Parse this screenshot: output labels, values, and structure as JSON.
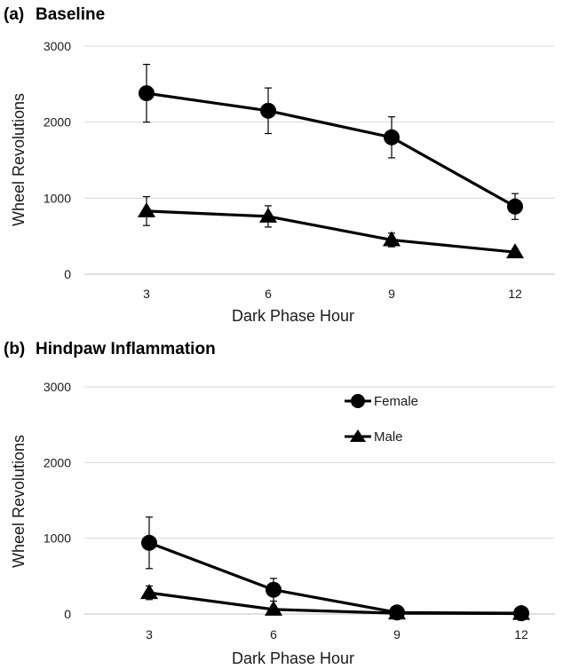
{
  "chart_data": [
    {
      "type": "line",
      "panel_label": "(a)",
      "title": "Baseline",
      "xlabel": "Dark Phase Hour",
      "ylabel": "Wheel Revolutions",
      "categories": [
        "3",
        "6",
        "9",
        "12"
      ],
      "yticks": [
        "0",
        "1000",
        "2000",
        "3000"
      ],
      "ylim": [
        0,
        3000
      ],
      "grid": true,
      "legend": false,
      "series": [
        {
          "name": "Female",
          "marker": "circle",
          "values": [
            2380,
            2150,
            1800,
            890
          ],
          "error": [
            380,
            300,
            270,
            170
          ]
        },
        {
          "name": "Male",
          "marker": "triangle",
          "values": [
            830,
            760,
            450,
            290
          ],
          "error": [
            190,
            140,
            90,
            40
          ]
        }
      ]
    },
    {
      "type": "line",
      "panel_label": "(b)",
      "title": "Hindpaw Inflammation",
      "xlabel": "Dark Phase Hour",
      "ylabel": "Wheel Revolutions",
      "categories": [
        "3",
        "6",
        "9",
        "12"
      ],
      "yticks": [
        "0",
        "1000",
        "2000",
        "3000"
      ],
      "ylim": [
        0,
        3000
      ],
      "grid": true,
      "legend": true,
      "legend_position": "top-right",
      "series": [
        {
          "name": "Female",
          "marker": "circle",
          "values": [
            940,
            320,
            20,
            10
          ],
          "error": [
            340,
            150,
            10,
            5
          ]
        },
        {
          "name": "Male",
          "marker": "triangle",
          "values": [
            280,
            60,
            10,
            5
          ],
          "error": [
            90,
            40,
            5,
            3
          ]
        }
      ]
    }
  ]
}
